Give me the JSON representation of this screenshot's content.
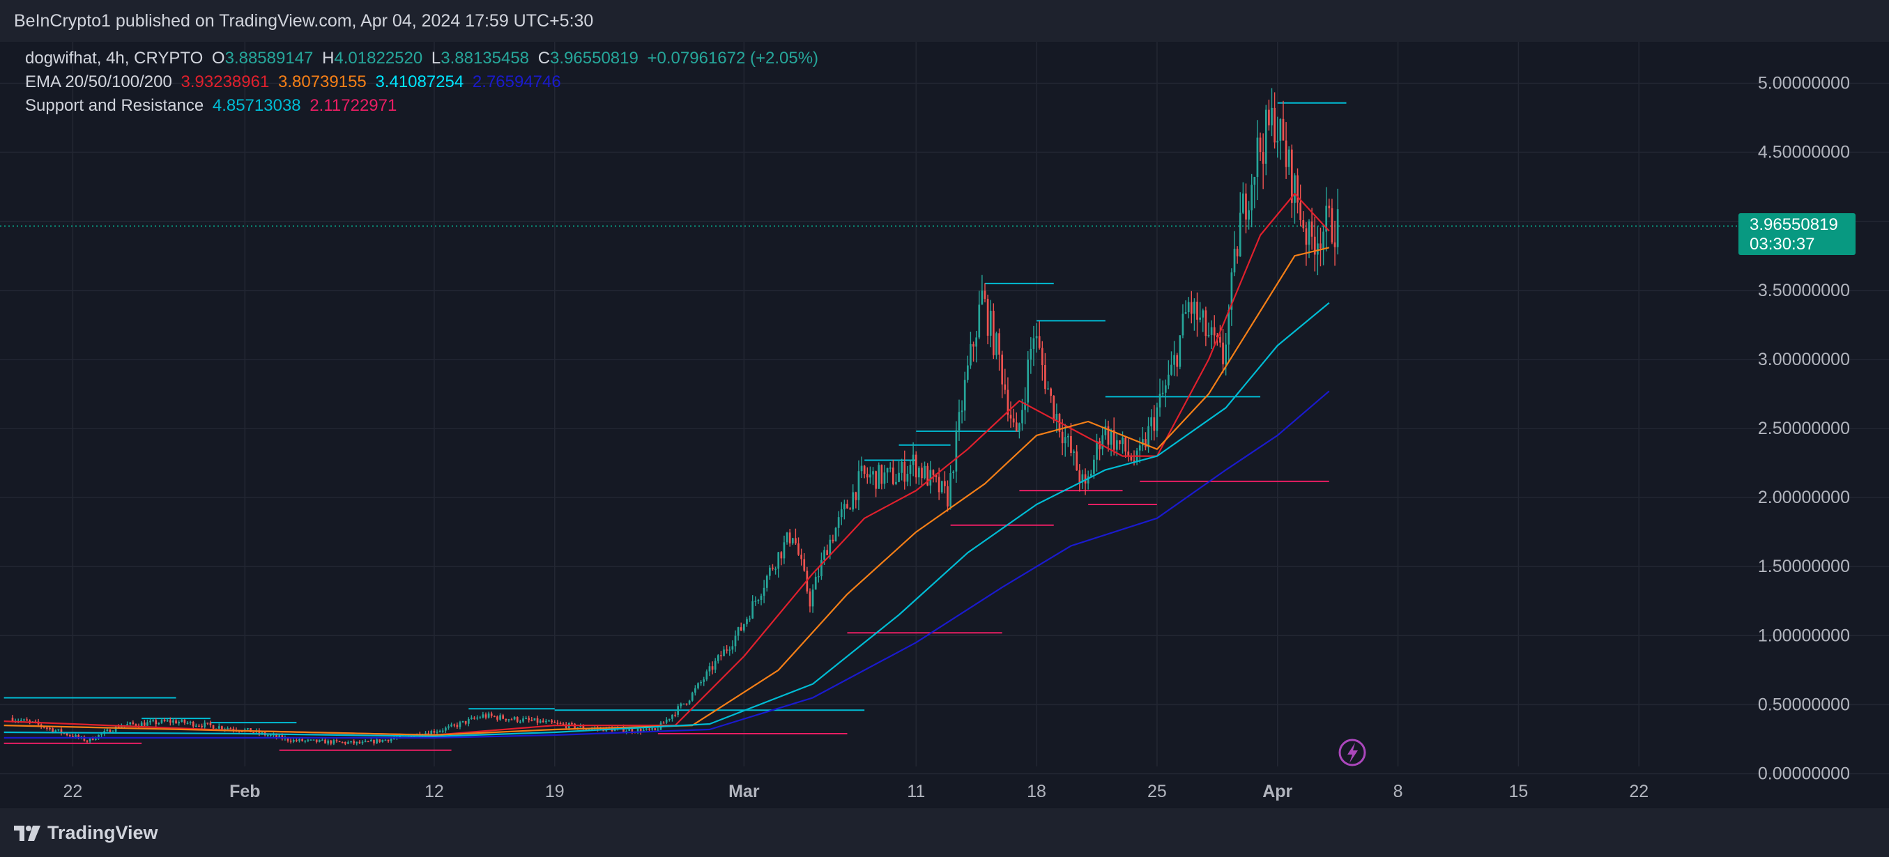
{
  "header": {
    "published": "BeInCrypto1 published on TradingView.com, Apr 04, 2024 17:59 UTC+5:30"
  },
  "legend": {
    "symbol": "dogwifhat, 4h, CRYPTO",
    "o_label": "O",
    "o": "3.88589147",
    "h_label": "H",
    "h": "4.01822520",
    "l_label": "L",
    "l": "3.88135458",
    "c_label": "C",
    "c": "3.96550819",
    "change": "+0.07961672 (+2.05%)",
    "ema_name": "EMA 20/50/100/200",
    "ema20": "3.93238961",
    "ema50": "3.80739155",
    "ema100": "3.41087254",
    "ema200": "2.76594746",
    "sr_name": "Support and Resistance",
    "resistance": "4.85713038",
    "support": "2.11722971"
  },
  "price_tag": {
    "price": "3.96550819",
    "countdown": "03:30:37"
  },
  "footer": {
    "brand": "TradingView"
  },
  "colors": {
    "up": "#26a69a",
    "down": "#ef5350",
    "ema20": "#e0202d",
    "ema50": "#f57f17",
    "ema100": "#00bcd4",
    "ema200": "#1a1acd",
    "resistance": "#00bcd4",
    "support": "#e91e63",
    "last_price": "#089981"
  },
  "chart_data": {
    "type": "candlestick",
    "timeframe": "4h",
    "x_tick_labels": [
      "22",
      "Feb",
      "12",
      "19",
      "Mar",
      "11",
      "18",
      "25",
      "Apr",
      "8",
      "15",
      "22"
    ],
    "x_ticks": [
      "2024-01-22",
      "2024-02-01",
      "2024-02-12",
      "2024-02-19",
      "2024-03-01",
      "2024-03-11",
      "2024-03-18",
      "2024-03-25",
      "2024-04-01",
      "2024-04-08",
      "2024-04-15",
      "2024-04-22"
    ],
    "y_ticks": [
      0.0,
      0.5,
      1.0,
      1.5,
      2.0,
      2.5,
      3.0,
      3.5,
      4.0,
      4.5,
      5.0
    ],
    "y_tick_labels": [
      "0.00000000",
      "0.50000000",
      "1.00000000",
      "1.50000000",
      "2.00000000",
      "2.50000000",
      "3.00000000",
      "3.50000000",
      "4.00000000",
      "4.50000000",
      "5.00000000"
    ],
    "ylim": [
      -0.25,
      5.3
    ],
    "last_price": 3.9655,
    "price_path": [
      [
        "2024-01-18",
        0.42
      ],
      [
        "2024-01-20",
        0.36
      ],
      [
        "2024-01-23",
        0.24
      ],
      [
        "2024-01-25",
        0.35
      ],
      [
        "2024-01-28",
        0.38
      ],
      [
        "2024-02-01",
        0.32
      ],
      [
        "2024-02-04",
        0.24
      ],
      [
        "2024-02-08",
        0.22
      ],
      [
        "2024-02-11",
        0.28
      ],
      [
        "2024-02-13",
        0.33
      ],
      [
        "2024-02-15",
        0.42
      ],
      [
        "2024-02-18",
        0.38
      ],
      [
        "2024-02-21",
        0.33
      ],
      [
        "2024-02-25",
        0.31
      ],
      [
        "2024-02-27",
        0.55
      ],
      [
        "2024-03-01",
        1.05
      ],
      [
        "2024-03-03",
        1.55
      ],
      [
        "2024-03-04",
        1.75
      ],
      [
        "2024-03-05",
        1.25
      ],
      [
        "2024-03-06",
        1.65
      ],
      [
        "2024-03-08",
        2.15
      ],
      [
        "2024-03-10",
        2.15
      ],
      [
        "2024-03-11",
        2.25
      ],
      [
        "2024-03-13",
        2.0
      ],
      [
        "2024-03-14",
        2.8
      ],
      [
        "2024-03-15",
        3.45
      ],
      [
        "2024-03-16",
        3.0
      ],
      [
        "2024-03-17",
        2.4
      ],
      [
        "2024-03-18",
        3.2
      ],
      [
        "2024-03-19",
        2.7
      ],
      [
        "2024-03-21",
        2.05
      ],
      [
        "2024-03-22",
        2.5
      ],
      [
        "2024-03-24",
        2.25
      ],
      [
        "2024-03-26",
        2.9
      ],
      [
        "2024-03-27",
        3.4
      ],
      [
        "2024-03-29",
        3.0
      ],
      [
        "2024-03-30",
        4.0
      ],
      [
        "2024-03-31",
        4.5
      ],
      [
        "2024-04-01",
        4.75
      ],
      [
        "2024-04-02",
        4.3
      ],
      [
        "2024-04-03",
        3.85
      ],
      [
        "2024-04-04",
        3.97
      ]
    ],
    "ema_series": [
      {
        "name": "EMA 20",
        "points": [
          [
            "2024-01-18",
            0.38
          ],
          [
            "2024-02-01",
            0.31
          ],
          [
            "2024-02-12",
            0.28
          ],
          [
            "2024-02-19",
            0.35
          ],
          [
            "2024-02-26",
            0.35
          ],
          [
            "2024-03-01",
            0.85
          ],
          [
            "2024-03-05",
            1.45
          ],
          [
            "2024-03-08",
            1.85
          ],
          [
            "2024-03-11",
            2.05
          ],
          [
            "2024-03-14",
            2.35
          ],
          [
            "2024-03-17",
            2.7
          ],
          [
            "2024-03-20",
            2.5
          ],
          [
            "2024-03-23",
            2.3
          ],
          [
            "2024-03-25",
            2.3
          ],
          [
            "2024-03-28",
            3.0
          ],
          [
            "2024-03-31",
            3.9
          ],
          [
            "2024-04-02",
            4.2
          ],
          [
            "2024-04-04",
            3.93
          ]
        ]
      },
      {
        "name": "EMA 50",
        "points": [
          [
            "2024-01-18",
            0.35
          ],
          [
            "2024-02-01",
            0.31
          ],
          [
            "2024-02-12",
            0.28
          ],
          [
            "2024-02-19",
            0.32
          ],
          [
            "2024-02-27",
            0.35
          ],
          [
            "2024-03-03",
            0.75
          ],
          [
            "2024-03-07",
            1.3
          ],
          [
            "2024-03-11",
            1.75
          ],
          [
            "2024-03-15",
            2.1
          ],
          [
            "2024-03-18",
            2.45
          ],
          [
            "2024-03-21",
            2.55
          ],
          [
            "2024-03-25",
            2.35
          ],
          [
            "2024-03-28",
            2.75
          ],
          [
            "2024-03-31",
            3.35
          ],
          [
            "2024-04-02",
            3.75
          ],
          [
            "2024-04-04",
            3.81
          ]
        ]
      },
      {
        "name": "EMA 100",
        "points": [
          [
            "2024-01-18",
            0.3
          ],
          [
            "2024-02-01",
            0.29
          ],
          [
            "2024-02-12",
            0.27
          ],
          [
            "2024-02-19",
            0.3
          ],
          [
            "2024-02-28",
            0.36
          ],
          [
            "2024-03-05",
            0.65
          ],
          [
            "2024-03-10",
            1.15
          ],
          [
            "2024-03-14",
            1.6
          ],
          [
            "2024-03-18",
            1.95
          ],
          [
            "2024-03-22",
            2.2
          ],
          [
            "2024-03-25",
            2.3
          ],
          [
            "2024-03-29",
            2.65
          ],
          [
            "2024-04-01",
            3.1
          ],
          [
            "2024-04-04",
            3.41
          ]
        ]
      },
      {
        "name": "EMA 200",
        "points": [
          [
            "2024-01-18",
            0.26
          ],
          [
            "2024-02-01",
            0.26
          ],
          [
            "2024-02-12",
            0.26
          ],
          [
            "2024-02-19",
            0.28
          ],
          [
            "2024-02-28",
            0.32
          ],
          [
            "2024-03-05",
            0.55
          ],
          [
            "2024-03-11",
            0.95
          ],
          [
            "2024-03-16",
            1.35
          ],
          [
            "2024-03-20",
            1.65
          ],
          [
            "2024-03-25",
            1.85
          ],
          [
            "2024-03-29",
            2.2
          ],
          [
            "2024-04-01",
            2.45
          ],
          [
            "2024-04-04",
            2.77
          ]
        ]
      }
    ],
    "support_resistance": [
      {
        "kind": "resistance",
        "from": "2024-01-18",
        "to": "2024-01-28",
        "value": 0.55
      },
      {
        "kind": "resistance",
        "from": "2024-01-26",
        "to": "2024-01-30",
        "value": 0.4
      },
      {
        "kind": "resistance",
        "from": "2024-01-30",
        "to": "2024-02-04",
        "value": 0.37
      },
      {
        "kind": "resistance",
        "from": "2024-02-14",
        "to": "2024-02-19",
        "value": 0.47
      },
      {
        "kind": "resistance",
        "from": "2024-02-19",
        "to": "2024-03-08",
        "value": 0.46
      },
      {
        "kind": "resistance",
        "from": "2024-03-08",
        "to": "2024-03-11",
        "value": 2.27
      },
      {
        "kind": "resistance",
        "from": "2024-03-10",
        "to": "2024-03-13",
        "value": 2.38
      },
      {
        "kind": "resistance",
        "from": "2024-03-11",
        "to": "2024-03-17",
        "value": 2.48
      },
      {
        "kind": "resistance",
        "from": "2024-03-15",
        "to": "2024-03-19",
        "value": 3.55
      },
      {
        "kind": "resistance",
        "from": "2024-03-18",
        "to": "2024-03-22",
        "value": 3.28
      },
      {
        "kind": "resistance",
        "from": "2024-03-22",
        "to": "2024-03-31",
        "value": 2.73
      },
      {
        "kind": "resistance",
        "from": "2024-04-01",
        "to": "2024-04-05",
        "value": 4.857
      },
      {
        "kind": "support",
        "from": "2024-01-18",
        "to": "2024-01-26",
        "value": 0.22
      },
      {
        "kind": "support",
        "from": "2024-02-03",
        "to": "2024-02-10",
        "value": 0.17
      },
      {
        "kind": "support",
        "from": "2024-02-10",
        "to": "2024-02-13",
        "value": 0.17
      },
      {
        "kind": "support",
        "from": "2024-02-25",
        "to": "2024-03-07",
        "value": 0.29
      },
      {
        "kind": "support",
        "from": "2024-03-07",
        "to": "2024-03-16",
        "value": 1.02
      },
      {
        "kind": "support",
        "from": "2024-03-13",
        "to": "2024-03-19",
        "value": 1.8
      },
      {
        "kind": "support",
        "from": "2024-03-17",
        "to": "2024-03-23",
        "value": 2.05
      },
      {
        "kind": "support",
        "from": "2024-03-21",
        "to": "2024-03-25",
        "value": 1.95
      },
      {
        "kind": "support",
        "from": "2024-03-24",
        "to": "2024-04-04",
        "value": 2.117
      }
    ]
  }
}
